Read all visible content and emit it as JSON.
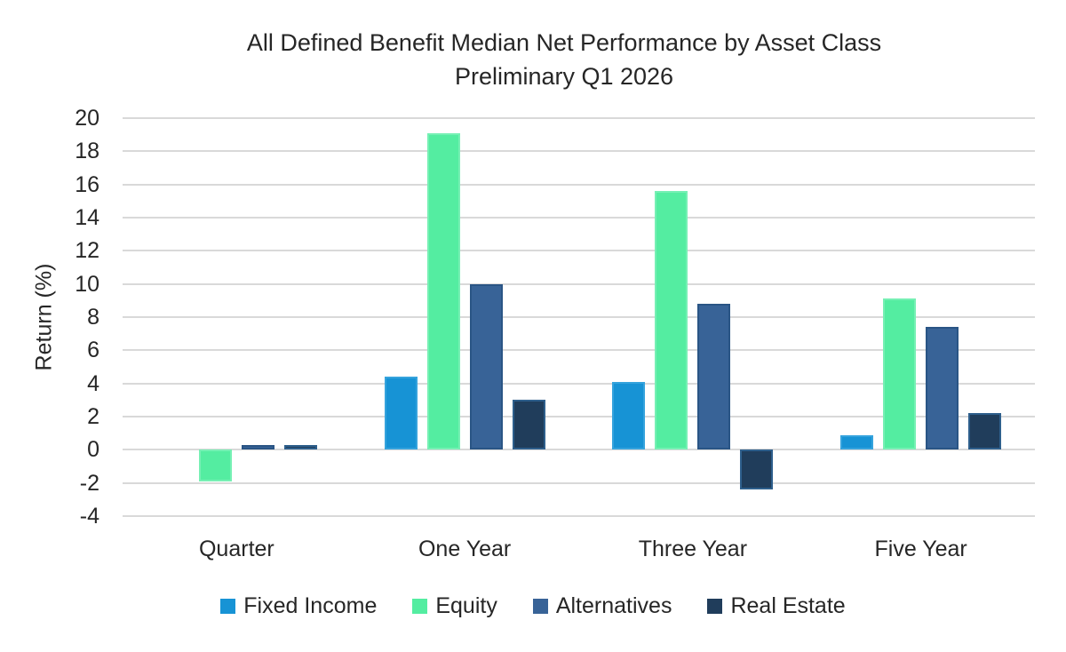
{
  "chart_data": {
    "type": "bar",
    "title": "All Defined Benefit Median Net Performance by Asset Class",
    "subtitle": "Preliminary Q1 2026",
    "ylabel": "Return (%)",
    "categories": [
      "Quarter",
      "One Year",
      "Three Year",
      "Five Year"
    ],
    "series": [
      {
        "name": "Fixed Income",
        "color": "#1793D5",
        "border": "#35A3DD",
        "values": [
          0.0,
          4.4,
          4.1,
          0.9
        ]
      },
      {
        "name": "Equity",
        "color": "#54EDA1",
        "border": "#76F0B4",
        "values": [
          -1.9,
          19.1,
          15.6,
          9.1
        ]
      },
      {
        "name": "Alternatives",
        "color": "#386397",
        "border": "#2A5585",
        "values": [
          0.3,
          10.0,
          8.8,
          7.4
        ]
      },
      {
        "name": "Real Estate",
        "color": "#203D5B",
        "border": "#2E5F8C",
        "values": [
          0.3,
          3.0,
          -2.4,
          2.2
        ]
      }
    ],
    "ylim": [
      -4,
      20
    ],
    "ytick_step": 2,
    "grid": true,
    "gridline_color": "#D9D9D9",
    "text_color": "#262626",
    "legend_position": "bottom"
  }
}
